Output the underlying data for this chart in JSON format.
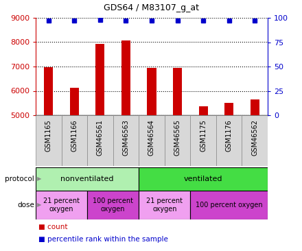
{
  "title": "GDS64 / M83107_g_at",
  "samples": [
    "GSM1165",
    "GSM1166",
    "GSM46561",
    "GSM46563",
    "GSM46564",
    "GSM46565",
    "GSM1175",
    "GSM1176",
    "GSM46562"
  ],
  "counts": [
    6980,
    6120,
    7930,
    8060,
    6950,
    6950,
    5360,
    5500,
    5640
  ],
  "percentiles": [
    97,
    97,
    98,
    97,
    97,
    97,
    97,
    97,
    97
  ],
  "ylim_left": [
    5000,
    9000
  ],
  "ylim_right": [
    0,
    100
  ],
  "yticks_left": [
    5000,
    6000,
    7000,
    8000,
    9000
  ],
  "yticks_right": [
    0,
    25,
    50,
    75,
    100
  ],
  "bar_color": "#cc0000",
  "dot_color": "#0000cc",
  "protocol_groups": [
    {
      "label": "nonventilated",
      "start": 0,
      "end": 4,
      "color": "#b0f0b0"
    },
    {
      "label": "ventilated",
      "start": 4,
      "end": 9,
      "color": "#44dd44"
    }
  ],
  "dose_groups": [
    {
      "label": "21 percent\noxygen",
      "start": 0,
      "end": 2,
      "color": "#f0a0f0"
    },
    {
      "label": "100 percent\noxygen",
      "start": 2,
      "end": 4,
      "color": "#cc44cc"
    },
    {
      "label": "21 percent\noxygen",
      "start": 4,
      "end": 6,
      "color": "#f0a0f0"
    },
    {
      "label": "100 percent oxygen",
      "start": 6,
      "end": 9,
      "color": "#cc44cc"
    }
  ],
  "protocol_label": "protocol",
  "dose_label": "dose",
  "legend_count": "count",
  "legend_percentile": "percentile rank within the sample",
  "tick_label_color_left": "#cc0000",
  "tick_label_color_right": "#0000cc"
}
